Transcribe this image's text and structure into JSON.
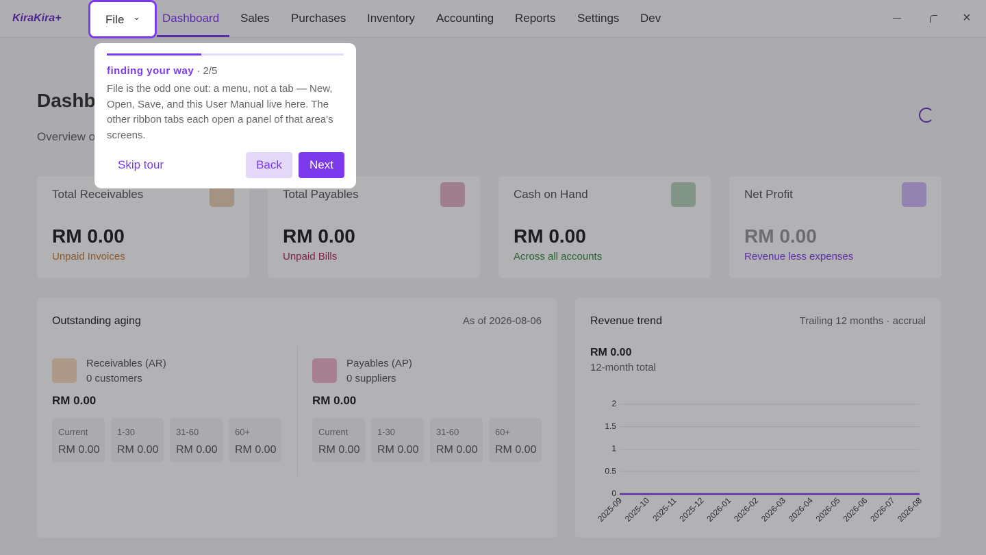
{
  "app": {
    "brand": "KiraKira+",
    "file_menu": "File",
    "tabs": [
      "Dashboard",
      "Sales",
      "Purchases",
      "Inventory",
      "Accounting",
      "Reports",
      "Settings",
      "Dev"
    ],
    "active_tab": 0
  },
  "page": {
    "title": "Dashboard",
    "subtitle": "Overview of your business"
  },
  "tour": {
    "progress": 0.4,
    "title": "finding your way",
    "separator": "·",
    "step": "2/5",
    "body": "File is the odd one out: a menu, not a tab — New, Open, Save, and this User Manual live here. The other ribbon tabs each open a panel of that area's screens.",
    "skip": "Skip tour",
    "back": "Back",
    "next": "Next"
  },
  "cards": [
    {
      "label": "Total Receivables",
      "value": "RM 0.00",
      "sub": "Unpaid Invoices",
      "color": "#c27a2c"
    },
    {
      "label": "Total Payables",
      "value": "RM 0.00",
      "sub": "Unpaid Bills",
      "color": "#b0285a"
    },
    {
      "label": "Cash on Hand",
      "value": "RM 0.00",
      "sub": "Across all accounts",
      "color": "#2f8a3c"
    },
    {
      "label": "Net Profit",
      "value": "RM 0.00",
      "sub": "Revenue less expenses",
      "color": "#7c3aed"
    }
  ],
  "aging": {
    "title": "Outstanding aging",
    "as_of": "As of 2026-08-06",
    "sides": [
      {
        "title": "Receivables (AR)",
        "count": "0 customers",
        "total": "RM 0.00",
        "color": "#e8a25a",
        "buckets": [
          {
            "label": "Current",
            "value": "RM 0.00"
          },
          {
            "label": "1-30",
            "value": "RM 0.00"
          },
          {
            "label": "31-60",
            "value": "RM 0.00"
          },
          {
            "label": "60+",
            "value": "RM 0.00"
          }
        ]
      },
      {
        "title": "Payables (AP)",
        "count": "0 suppliers",
        "total": "RM 0.00",
        "color": "#d84a78",
        "buckets": [
          {
            "label": "Current",
            "value": "RM 0.00"
          },
          {
            "label": "1-30",
            "value": "RM 0.00"
          },
          {
            "label": "31-60",
            "value": "RM 0.00"
          },
          {
            "label": "60+",
            "value": "RM 0.00"
          }
        ]
      }
    ]
  },
  "revenue": {
    "title": "Revenue trend",
    "subtitle": "Trailing 12 months · accrual",
    "total": "RM 0.00",
    "total_label": "12-month total"
  },
  "chart_data": {
    "type": "line",
    "categories": [
      "2025-09",
      "2025-10",
      "2025-11",
      "2025-12",
      "2026-01",
      "2026-02",
      "2026-03",
      "2026-04",
      "2026-05",
      "2026-06",
      "2026-07",
      "2026-08"
    ],
    "values": [
      0,
      0,
      0,
      0,
      0,
      0,
      0,
      0,
      0,
      0,
      0,
      0
    ],
    "color": "#7c3aed",
    "ylim": [
      0,
      2
    ],
    "yticks": [
      0,
      0.5,
      1,
      1.5,
      2
    ],
    "grid": true
  }
}
